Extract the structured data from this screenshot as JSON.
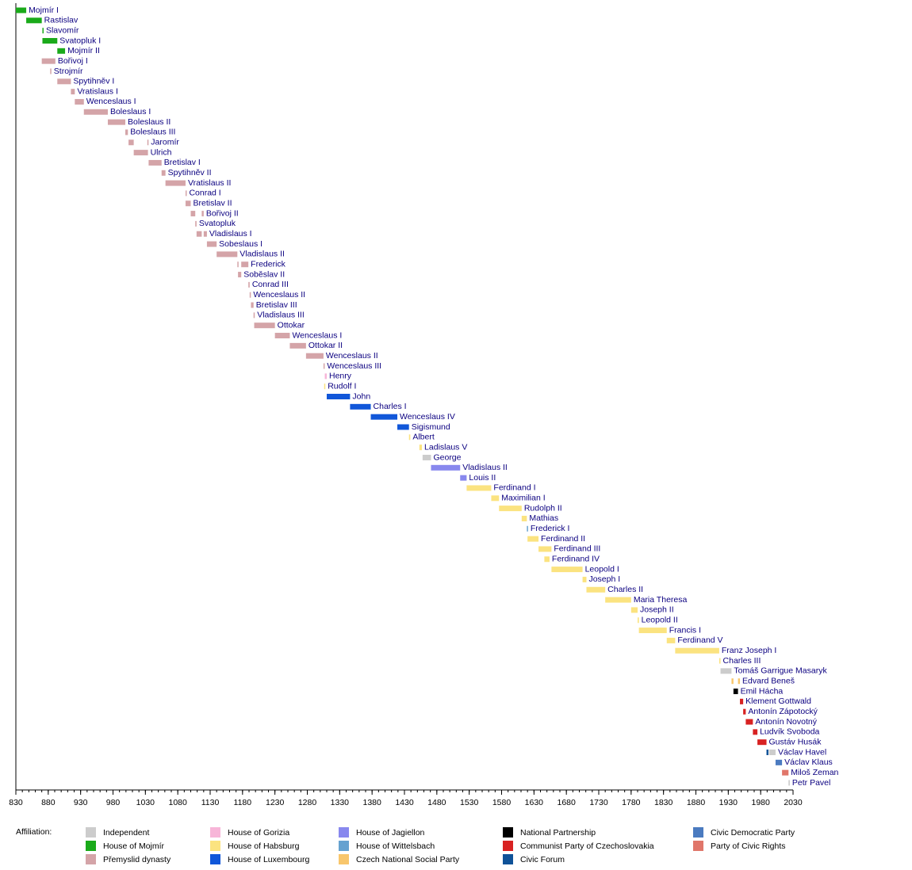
{
  "chart_data": {
    "type": "timeline",
    "xlim": [
      830,
      2030
    ],
    "xticks": [
      830,
      880,
      930,
      980,
      1030,
      1080,
      1130,
      1180,
      1230,
      1280,
      1330,
      1380,
      1430,
      1480,
      1530,
      1580,
      1630,
      1680,
      1730,
      1780,
      1830,
      1880,
      1930,
      1980,
      2030
    ],
    "minor_tick_interval": 10,
    "legend_title": "Affiliation:",
    "legend": [
      {
        "name": "Independent",
        "color": "#cccccc"
      },
      {
        "name": "House of Mojmír",
        "color": "#1aaa1a"
      },
      {
        "name": "Přemyslid dynasty",
        "color": "#d4a4a8"
      },
      {
        "name": "House of Gorizia",
        "color": "#f7b5d8"
      },
      {
        "name": "House of Habsburg",
        "color": "#fbe380"
      },
      {
        "name": "House of Luxembourg",
        "color": "#1157d9"
      },
      {
        "name": "House of Jagiellon",
        "color": "#8888ee"
      },
      {
        "name": "House of Wittelsbach",
        "color": "#66a2d0"
      },
      {
        "name": "Czech National Social Party",
        "color": "#f8c66c"
      },
      {
        "name": "National Partnership",
        "color": "#000000"
      },
      {
        "name": "Communist Party of Czechoslovakia",
        "color": "#d82222"
      },
      {
        "name": "Civic Forum",
        "color": "#0f5298"
      },
      {
        "name": "Civic Democratic Party",
        "color": "#4b7bc0"
      },
      {
        "name": "Party of Civic Rights",
        "color": "#e0766a"
      }
    ],
    "rulers": [
      {
        "name": "Mojmír I",
        "affiliation": "House of Mojmír",
        "reigns": [
          [
            830,
            846
          ]
        ]
      },
      {
        "name": "Rastislav",
        "affiliation": "House of Mojmír",
        "reigns": [
          [
            846,
            870
          ]
        ]
      },
      {
        "name": "Slavomír",
        "affiliation": "House of Mojmír",
        "reigns": [
          [
            871,
            871
          ]
        ]
      },
      {
        "name": "Svatopluk I",
        "affiliation": "House of Mojmír",
        "reigns": [
          [
            871,
            894
          ]
        ]
      },
      {
        "name": "Mojmír II",
        "affiliation": "House of Mojmír",
        "reigns": [
          [
            894,
            906
          ]
        ]
      },
      {
        "name": "Bořivoj I",
        "affiliation": "Přemyslid dynasty",
        "reigns": [
          [
            870,
            891
          ]
        ]
      },
      {
        "name": "Strojmír",
        "affiliation": "Přemyslid dynasty",
        "reigns": [
          [
            883,
            884
          ]
        ]
      },
      {
        "name": "Spytihněv I",
        "affiliation": "Přemyslid dynasty",
        "reigns": [
          [
            894,
            915
          ]
        ]
      },
      {
        "name": "Vratislaus I",
        "affiliation": "Přemyslid dynasty",
        "reigns": [
          [
            915,
            921
          ]
        ]
      },
      {
        "name": "Wenceslaus I",
        "affiliation": "Přemyslid dynasty",
        "reigns": [
          [
            921,
            935
          ]
        ]
      },
      {
        "name": "Boleslaus I",
        "affiliation": "Přemyslid dynasty",
        "reigns": [
          [
            935,
            972
          ]
        ]
      },
      {
        "name": "Boleslaus II",
        "affiliation": "Přemyslid dynasty",
        "reigns": [
          [
            972,
            999
          ]
        ]
      },
      {
        "name": "Boleslaus III",
        "affiliation": "Přemyslid dynasty",
        "reigns": [
          [
            999,
            1003
          ]
        ]
      },
      {
        "name": "Jaromír",
        "affiliation": "Přemyslid dynasty",
        "reigns": [
          [
            1004,
            1012
          ],
          [
            1033,
            1034
          ]
        ]
      },
      {
        "name": "Ulrich",
        "affiliation": "Přemyslid dynasty",
        "reigns": [
          [
            1012,
            1034
          ]
        ]
      },
      {
        "name": "Bretislav I",
        "affiliation": "Přemyslid dynasty",
        "reigns": [
          [
            1035,
            1055
          ]
        ]
      },
      {
        "name": "Spytihněv II",
        "affiliation": "Přemyslid dynasty",
        "reigns": [
          [
            1055,
            1061
          ]
        ]
      },
      {
        "name": "Vratislaus II",
        "affiliation": "Přemyslid dynasty",
        "reigns": [
          [
            1061,
            1092
          ]
        ]
      },
      {
        "name": "Conrad I",
        "affiliation": "Přemyslid dynasty",
        "reigns": [
          [
            1092,
            1092
          ]
        ]
      },
      {
        "name": "Bretislav II",
        "affiliation": "Přemyslid dynasty",
        "reigns": [
          [
            1092,
            1100
          ]
        ]
      },
      {
        "name": "Bořivoj II",
        "affiliation": "Přemyslid dynasty",
        "reigns": [
          [
            1100,
            1107
          ],
          [
            1117,
            1120
          ]
        ]
      },
      {
        "name": "Svatopluk",
        "affiliation": "Přemyslid dynasty",
        "reigns": [
          [
            1107,
            1109
          ]
        ]
      },
      {
        "name": "Vladislaus I",
        "affiliation": "Přemyslid dynasty",
        "reigns": [
          [
            1109,
            1117
          ],
          [
            1120,
            1125
          ]
        ]
      },
      {
        "name": "Sobeslaus I",
        "affiliation": "Přemyslid dynasty",
        "reigns": [
          [
            1125,
            1140
          ]
        ]
      },
      {
        "name": "Vladislaus II",
        "affiliation": "Přemyslid dynasty",
        "reigns": [
          [
            1140,
            1172
          ]
        ]
      },
      {
        "name": "Frederick",
        "affiliation": "Přemyslid dynasty",
        "reigns": [
          [
            1172,
            1173
          ],
          [
            1178,
            1189
          ]
        ]
      },
      {
        "name": "Soběslav II",
        "affiliation": "Přemyslid dynasty",
        "reigns": [
          [
            1173,
            1178
          ]
        ]
      },
      {
        "name": "Conrad III",
        "affiliation": "Přemyslid dynasty",
        "reigns": [
          [
            1189,
            1191
          ]
        ]
      },
      {
        "name": "Wenceslaus II",
        "affiliation": "Přemyslid dynasty",
        "reigns": [
          [
            1191,
            1192
          ]
        ]
      },
      {
        "name": "Bretislav III",
        "affiliation": "Přemyslid dynasty",
        "reigns": [
          [
            1193,
            1197
          ]
        ]
      },
      {
        "name": "Vladislaus III",
        "affiliation": "Přemyslid dynasty",
        "reigns": [
          [
            1197,
            1197
          ]
        ]
      },
      {
        "name": "Ottokar",
        "affiliation": "Přemyslid dynasty",
        "reigns": [
          [
            1198,
            1230
          ]
        ]
      },
      {
        "name": "Wenceslaus I",
        "affiliation": "Přemyslid dynasty",
        "reigns": [
          [
            1230,
            1253
          ]
        ]
      },
      {
        "name": "Ottokar II",
        "affiliation": "Přemyslid dynasty",
        "reigns": [
          [
            1253,
            1278
          ]
        ]
      },
      {
        "name": "Wenceslaus II",
        "affiliation": "Přemyslid dynasty",
        "reigns": [
          [
            1278,
            1305
          ]
        ]
      },
      {
        "name": "Wenceslaus III",
        "affiliation": "Přemyslid dynasty",
        "reigns": [
          [
            1305,
            1306
          ]
        ]
      },
      {
        "name": "Henry",
        "affiliation": "House of Gorizia",
        "reigns": [
          [
            1307,
            1310
          ]
        ]
      },
      {
        "name": "Rudolf I",
        "affiliation": "House of Habsburg",
        "reigns": [
          [
            1306,
            1307
          ]
        ]
      },
      {
        "name": "John",
        "affiliation": "House of Luxembourg",
        "reigns": [
          [
            1310,
            1346
          ]
        ]
      },
      {
        "name": "Charles I",
        "affiliation": "House of Luxembourg",
        "reigns": [
          [
            1346,
            1378
          ]
        ]
      },
      {
        "name": "Wenceslaus IV",
        "affiliation": "House of Luxembourg",
        "reigns": [
          [
            1378,
            1419
          ]
        ]
      },
      {
        "name": "Sigismund",
        "affiliation": "House of Luxembourg",
        "reigns": [
          [
            1419,
            1437
          ]
        ]
      },
      {
        "name": "Albert",
        "affiliation": "House of Habsburg",
        "reigns": [
          [
            1437,
            1439
          ]
        ]
      },
      {
        "name": "Ladislaus V",
        "affiliation": "House of Habsburg",
        "reigns": [
          [
            1453,
            1457
          ]
        ]
      },
      {
        "name": "George",
        "affiliation": "Independent",
        "reigns": [
          [
            1458,
            1471
          ]
        ]
      },
      {
        "name": "Vladislaus II",
        "affiliation": "House of Jagiellon",
        "reigns": [
          [
            1471,
            1516
          ]
        ]
      },
      {
        "name": "Louis II",
        "affiliation": "House of Jagiellon",
        "reigns": [
          [
            1516,
            1526
          ]
        ]
      },
      {
        "name": "Ferdinand I",
        "affiliation": "House of Habsburg",
        "reigns": [
          [
            1526,
            1564
          ]
        ]
      },
      {
        "name": "Maximilian I",
        "affiliation": "House of Habsburg",
        "reigns": [
          [
            1564,
            1576
          ]
        ]
      },
      {
        "name": "Rudolph II",
        "affiliation": "House of Habsburg",
        "reigns": [
          [
            1576,
            1611
          ]
        ]
      },
      {
        "name": "Mathias",
        "affiliation": "House of Habsburg",
        "reigns": [
          [
            1611,
            1619
          ]
        ]
      },
      {
        "name": "Frederick I",
        "affiliation": "House of Wittelsbach",
        "reigns": [
          [
            1619,
            1620
          ]
        ]
      },
      {
        "name": "Ferdinand II",
        "affiliation": "House of Habsburg",
        "reigns": [
          [
            1620,
            1637
          ]
        ]
      },
      {
        "name": "Ferdinand III",
        "affiliation": "House of Habsburg",
        "reigns": [
          [
            1637,
            1657
          ]
        ]
      },
      {
        "name": "Ferdinand IV",
        "affiliation": "House of Habsburg",
        "reigns": [
          [
            1646,
            1654
          ]
        ]
      },
      {
        "name": "Leopold I",
        "affiliation": "House of Habsburg",
        "reigns": [
          [
            1657,
            1705
          ]
        ]
      },
      {
        "name": "Joseph I",
        "affiliation": "House of Habsburg",
        "reigns": [
          [
            1705,
            1711
          ]
        ]
      },
      {
        "name": "Charles II",
        "affiliation": "House of Habsburg",
        "reigns": [
          [
            1711,
            1740
          ]
        ]
      },
      {
        "name": "Maria Theresa",
        "affiliation": "House of Habsburg",
        "reigns": [
          [
            1740,
            1780
          ]
        ]
      },
      {
        "name": "Joseph II",
        "affiliation": "House of Habsburg",
        "reigns": [
          [
            1780,
            1790
          ]
        ]
      },
      {
        "name": "Leopold II",
        "affiliation": "House of Habsburg",
        "reigns": [
          [
            1790,
            1792
          ]
        ]
      },
      {
        "name": "Francis I",
        "affiliation": "House of Habsburg",
        "reigns": [
          [
            1792,
            1835
          ]
        ]
      },
      {
        "name": "Ferdinand V",
        "affiliation": "House of Habsburg",
        "reigns": [
          [
            1835,
            1848
          ]
        ]
      },
      {
        "name": "Franz Joseph I",
        "affiliation": "House of Habsburg",
        "reigns": [
          [
            1848,
            1916
          ]
        ]
      },
      {
        "name": "Charles III",
        "affiliation": "House of Habsburg",
        "reigns": [
          [
            1916,
            1918
          ]
        ]
      },
      {
        "name": "Tomáš Garrigue Masaryk",
        "affiliation": "Independent",
        "reigns": [
          [
            1918,
            1935
          ]
        ]
      },
      {
        "name": "Edvard Beneš",
        "affiliation": "Czech National Social Party",
        "reigns": [
          [
            1935,
            1938
          ],
          [
            1945,
            1948
          ]
        ]
      },
      {
        "name": "Emil Hácha",
        "affiliation": "National Partnership",
        "reigns": [
          [
            1938,
            1945
          ]
        ]
      },
      {
        "name": "Klement Gottwald",
        "affiliation": "Communist Party of Czechoslovakia",
        "reigns": [
          [
            1948,
            1953
          ]
        ]
      },
      {
        "name": "Antonín Zápotocký",
        "affiliation": "Communist Party of Czechoslovakia",
        "reigns": [
          [
            1953,
            1957
          ]
        ]
      },
      {
        "name": "Antonín Novotný",
        "affiliation": "Communist Party of Czechoslovakia",
        "reigns": [
          [
            1957,
            1968
          ]
        ]
      },
      {
        "name": "Ludvík Svoboda",
        "affiliation": "Communist Party of Czechoslovakia",
        "reigns": [
          [
            1968,
            1975
          ]
        ]
      },
      {
        "name": "Gustáv Husák",
        "affiliation": "Communist Party of Czechoslovakia",
        "reigns": [
          [
            1975,
            1989
          ]
        ]
      },
      {
        "name": "Václav Havel",
        "affiliation": "Independent",
        "reigns": [
          [
            1989,
            1992,
            "Civic Forum"
          ],
          [
            1993,
            2003
          ]
        ]
      },
      {
        "name": "Václav Klaus",
        "affiliation": "Civic Democratic Party",
        "reigns": [
          [
            2003,
            2013
          ]
        ]
      },
      {
        "name": "Miloš Zeman",
        "affiliation": "Party of Civic Rights",
        "reigns": [
          [
            2013,
            2023
          ]
        ]
      },
      {
        "name": "Petr Pavel",
        "affiliation": "Independent",
        "reigns": [
          [
            2023,
            2025
          ]
        ]
      }
    ]
  }
}
